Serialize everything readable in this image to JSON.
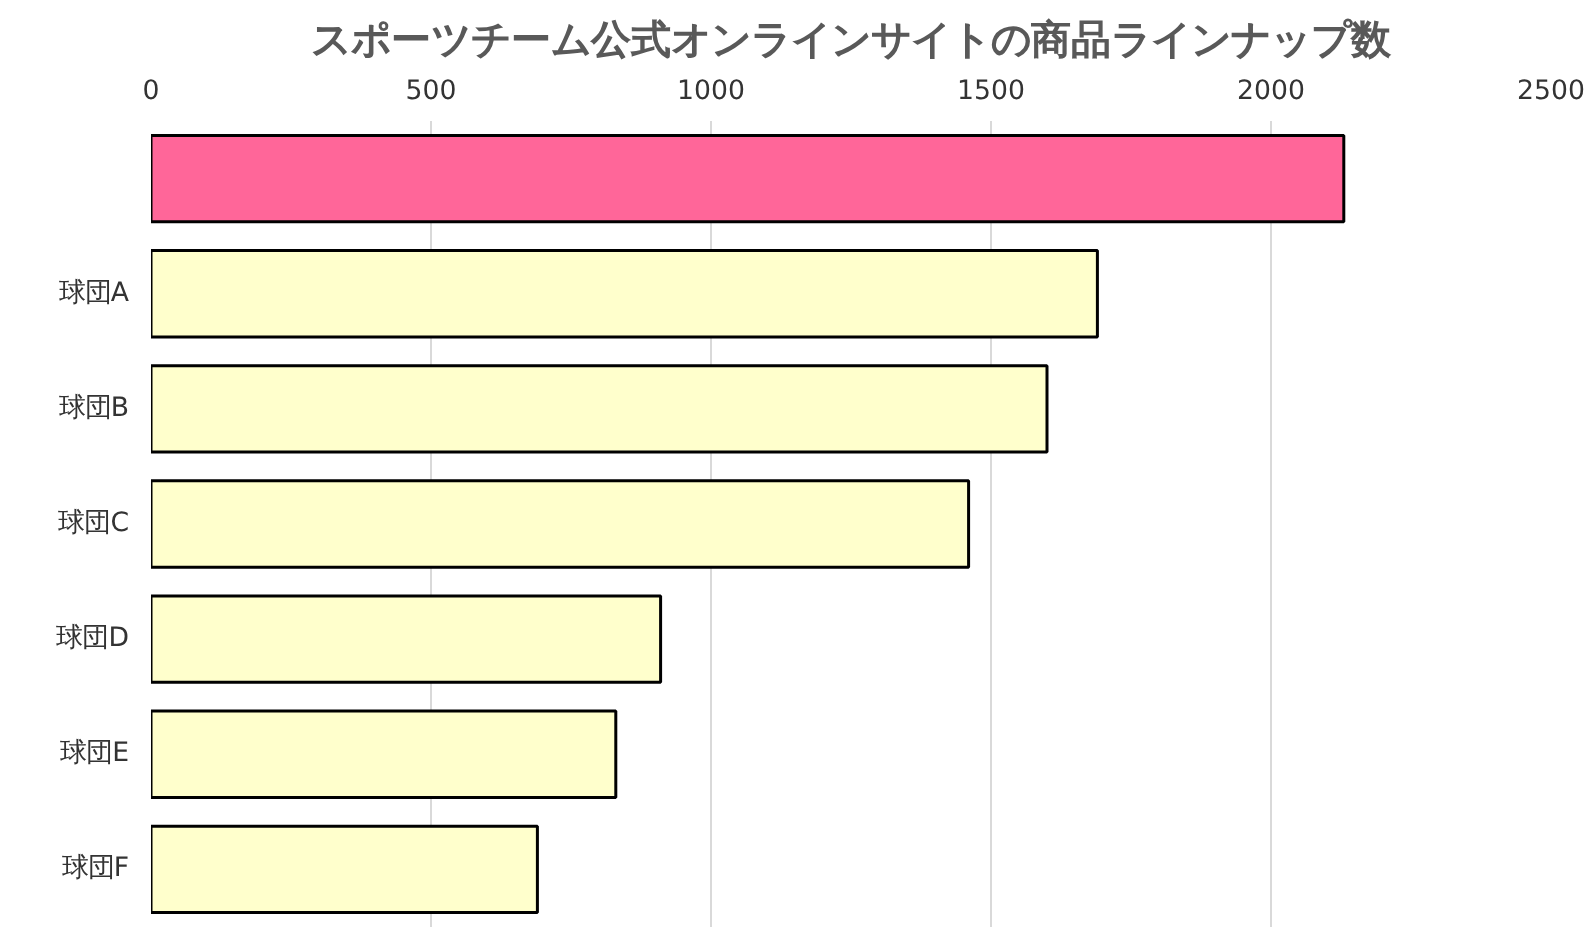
{
  "chart_data": {
    "type": "bar",
    "orientation": "horizontal",
    "title": "スポーツチーム公式オンラインサイトの商品ラインナップ数",
    "categories": [
      null,
      "球団A",
      "球団B",
      "球団C",
      "球団D",
      "球団E",
      "球団F"
    ],
    "values": [
      2130,
      1690,
      1600,
      1460,
      910,
      830,
      690
    ],
    "colors": [
      "#ff6699",
      "#ffffcc",
      "#ffffcc",
      "#ffffcc",
      "#ffffcc",
      "#ffffcc",
      "#ffffcc"
    ],
    "xlim": [
      0,
      2500
    ],
    "xticks": [
      0,
      500,
      1000,
      1500,
      2000,
      2500
    ],
    "grid": "x"
  }
}
